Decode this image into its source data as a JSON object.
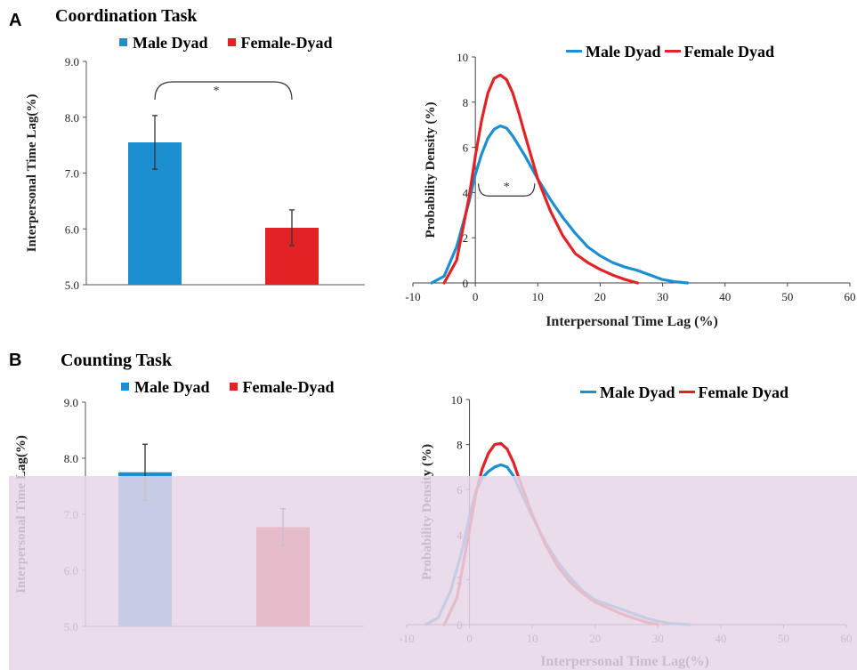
{
  "colors": {
    "male": "#1b8fd0",
    "female": "#e32226",
    "overlay": "#e6d6e8"
  },
  "panels": [
    {
      "letter": "A",
      "title": "Coordination Task"
    },
    {
      "letter": "B",
      "title": "Counting Task"
    }
  ],
  "legend": {
    "bar": {
      "male": "Male Dyad",
      "female": "Female-Dyad"
    },
    "density": {
      "male": "Male Dyad",
      "female": "Female Dyad"
    }
  },
  "chart_data": [
    {
      "type": "bar",
      "panel": "A",
      "ylabel": "Interpersonal Time  Lag(%)",
      "ylim": [
        5.0,
        9.0
      ],
      "yticks": [
        "5.0",
        "6.0",
        "7.0",
        "8.0",
        "9.0"
      ],
      "categories": [
        "Male Dyad",
        "Female-Dyad"
      ],
      "values": [
        7.55,
        6.02
      ],
      "errors": [
        0.48,
        0.32
      ],
      "significance": "*"
    },
    {
      "type": "line",
      "panel": "A",
      "xlabel": "Interpersonal Time  Lag (%)",
      "ylabel": "Probability Density (%)",
      "xlim": [
        -10,
        60
      ],
      "ylim": [
        0,
        10
      ],
      "xticks": [
        "-10",
        "0",
        "10",
        "20",
        "30",
        "40",
        "50",
        "60"
      ],
      "yticks": [
        "0",
        "2",
        "4",
        "6",
        "8",
        "10"
      ],
      "significance": "*",
      "series": [
        {
          "name": "Male Dyad",
          "x": [
            -7,
            -5,
            -3,
            -1,
            0,
            1,
            2,
            3,
            4,
            5,
            6,
            8,
            10,
            12,
            14,
            16,
            18,
            20,
            22,
            24,
            26,
            28,
            30,
            32,
            34
          ],
          "y": [
            0,
            0.3,
            1.6,
            3.6,
            4.8,
            5.7,
            6.4,
            6.8,
            6.95,
            6.85,
            6.5,
            5.6,
            4.6,
            3.7,
            2.9,
            2.2,
            1.6,
            1.2,
            0.9,
            0.7,
            0.55,
            0.35,
            0.15,
            0.05,
            0
          ]
        },
        {
          "name": "Female Dyad",
          "x": [
            -5,
            -3,
            -1,
            0,
            1,
            2,
            3,
            4,
            5,
            6,
            7,
            8,
            10,
            12,
            14,
            16,
            18,
            20,
            22,
            24,
            26
          ],
          "y": [
            0,
            1.0,
            3.8,
            5.6,
            7.2,
            8.4,
            9.05,
            9.2,
            9.0,
            8.4,
            7.5,
            6.5,
            4.6,
            3.2,
            2.1,
            1.3,
            0.9,
            0.6,
            0.35,
            0.15,
            0
          ]
        }
      ]
    },
    {
      "type": "bar",
      "panel": "B",
      "ylabel": "Interpersonal Time Lag(%)",
      "ylim": [
        5.0,
        9.0
      ],
      "yticks": [
        "5.0",
        "6.0",
        "7.0",
        "8.0",
        "9.0"
      ],
      "categories": [
        "Male Dyad",
        "Female-Dyad"
      ],
      "values": [
        7.75,
        6.77
      ],
      "errors": [
        0.5,
        0.33
      ]
    },
    {
      "type": "line",
      "panel": "B",
      "xlabel": "Interpersonal Time Lag(%)",
      "ylabel": "Probability Density (%)",
      "xlim": [
        -10,
        60
      ],
      "ylim": [
        0,
        10
      ],
      "xticks": [
        "-10",
        "0",
        "10",
        "20",
        "30",
        "40",
        "50",
        "60"
      ],
      "yticks": [
        "0",
        "2",
        "4",
        "6",
        "8",
        "10"
      ],
      "series": [
        {
          "name": "Male Dyad",
          "x": [
            -7,
            -5,
            -3,
            -1,
            0,
            1,
            2,
            3,
            4,
            5,
            6,
            7,
            8,
            10,
            12,
            14,
            16,
            18,
            20,
            22,
            24,
            26,
            28,
            30,
            32,
            35
          ],
          "y": [
            0,
            0.3,
            1.5,
            3.5,
            4.8,
            5.9,
            6.5,
            6.8,
            7.0,
            7.1,
            7.0,
            6.6,
            6.0,
            4.8,
            3.7,
            2.8,
            2.1,
            1.5,
            1.1,
            0.9,
            0.7,
            0.5,
            0.3,
            0.15,
            0.05,
            0
          ]
        },
        {
          "name": "Female Dyad",
          "x": [
            -4,
            -2,
            0,
            1,
            2,
            3,
            4,
            5,
            6,
            7,
            8,
            10,
            12,
            14,
            16,
            18,
            20,
            22,
            24,
            26,
            28,
            30
          ],
          "y": [
            0,
            1.2,
            4.2,
            5.8,
            6.9,
            7.6,
            8.0,
            8.05,
            7.8,
            7.2,
            6.4,
            4.9,
            3.6,
            2.6,
            1.9,
            1.4,
            1.0,
            0.75,
            0.5,
            0.3,
            0.12,
            0
          ]
        }
      ]
    }
  ]
}
